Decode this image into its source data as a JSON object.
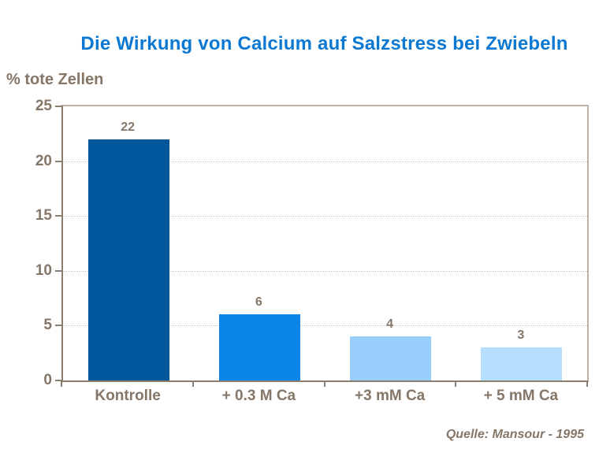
{
  "title": "Die Wirkung von Calcium auf Salzstress bei Zwiebeln",
  "y_axis_title": "% tote Zellen",
  "source": "Quelle: Mansour - 1995",
  "colors": {
    "title_blue": "#0b78d2",
    "text_brown": "#857668",
    "axis_dark": "#8b7e6f",
    "border_light": "#bdb3a4",
    "gridline": "#c9c2b4",
    "background": "#ffffff"
  },
  "chart_data": {
    "type": "bar",
    "title": "Die Wirkung von Calcium auf Salzstress bei Zwiebeln",
    "categories": [
      "Kontrolle",
      "+ 0.3 M Ca",
      "+3 mM Ca",
      "+ 5 mM Ca"
    ],
    "values": [
      22,
      6,
      4,
      3
    ],
    "data_labels": [
      "22",
      "6",
      "4",
      "3"
    ],
    "bar_colors": [
      "#00579c",
      "#0b84e8",
      "#99cdfc",
      "#b7defc"
    ],
    "xlabel": "",
    "ylabel": "% tote Zellen",
    "ylim": [
      0,
      25
    ],
    "yticks": [
      0,
      5,
      10,
      15,
      20,
      25
    ],
    "grid": true,
    "legend": "none",
    "source": "Quelle: Mansour - 1995"
  }
}
